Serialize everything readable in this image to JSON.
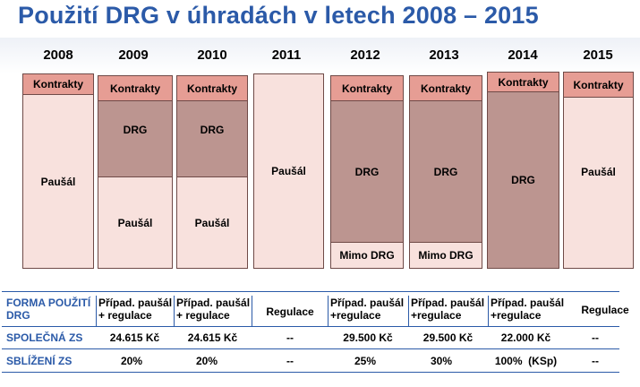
{
  "title": "Použití DRG v úhradách v letech 2008 – 2015",
  "years": [
    "2008",
    "2009",
    "2010",
    "2011",
    "2012",
    "2013",
    "2014",
    "2015"
  ],
  "segments": {
    "kontrakty": "Kontrakty",
    "drg": "DRG",
    "pausal": "Paušál",
    "mimo_drg": "Mimo DRG"
  },
  "colors": {
    "title": "#2b5aa8",
    "kontrakty": "#e69d94",
    "drg": "#bc9590",
    "pausal": "#f8e1dd",
    "border": "#6f4a47"
  },
  "table": {
    "rows": [
      {
        "label": [
          "FORMA POUŽITÍ",
          "DRG"
        ],
        "cells": [
          [
            "Případ. paušál",
            "+ regulace"
          ],
          [
            "Případ. paušál",
            "+ regulace"
          ],
          [
            "Regulace"
          ],
          [
            "Případ. paušál",
            "+regulace"
          ],
          [
            "Případ. paušál",
            "+regulace"
          ],
          [
            "Případ. paušál",
            "+regulace"
          ],
          [
            "Regulace"
          ]
        ]
      },
      {
        "label": [
          "SPOLEČNÁ ZS"
        ],
        "cells": [
          [
            "24.615 Kč"
          ],
          [
            "24.615 Kč"
          ],
          [
            "--"
          ],
          [
            "29.500 Kč"
          ],
          [
            "29.500 Kč"
          ],
          [
            "22.000 Kč"
          ],
          [
            "--"
          ]
        ]
      },
      {
        "label": [
          "SBLÍŽENÍ ZS"
        ],
        "cells": [
          [
            "20%"
          ],
          [
            "20%"
          ],
          [
            "--"
          ],
          [
            "25%"
          ],
          [
            "30%"
          ],
          [
            "100%  (KSp)"
          ],
          [
            "--"
          ]
        ]
      }
    ]
  }
}
